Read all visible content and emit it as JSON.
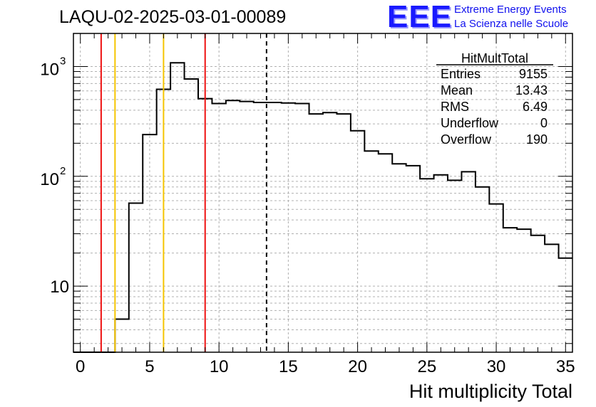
{
  "title": "LAQU-02-2025-03-01-00089",
  "logo": {
    "mark": "EEE",
    "line1": "Extreme Energy Events",
    "line2": "La Scienza nelle Scuole",
    "color": "#1a1aff"
  },
  "chart_data": {
    "type": "histogram",
    "xlabel": "Hit multiplicity Total",
    "ylabel": "",
    "xlim": [
      -0.5,
      35.5
    ],
    "ylim": [
      2.5,
      2000
    ],
    "yscale": "log",
    "grid": true,
    "bin_width": 1,
    "bin_lows": [
      -0.5,
      0.5,
      1.5,
      2.5,
      3.5,
      4.5,
      5.5,
      6.5,
      7.5,
      8.5,
      9.5,
      10.5,
      11.5,
      12.5,
      13.5,
      14.5,
      15.5,
      16.5,
      17.5,
      18.5,
      19.5,
      20.5,
      21.5,
      22.5,
      23.5,
      24.5,
      25.5,
      26.5,
      27.5,
      28.5,
      29.5,
      30.5,
      31.5,
      32.5,
      33.5,
      34.5
    ],
    "counts": [
      0,
      0,
      0,
      5,
      57,
      240,
      620,
      1080,
      770,
      510,
      460,
      490,
      480,
      470,
      470,
      465,
      460,
      370,
      380,
      370,
      260,
      170,
      160,
      130,
      125,
      95,
      103,
      92,
      110,
      80,
      56,
      34,
      33,
      29,
      24,
      18
    ],
    "xticks": [
      0,
      5,
      10,
      15,
      20,
      25,
      30,
      35
    ],
    "xtick_labels": [
      "0",
      "5",
      "10",
      "15",
      "20",
      "25",
      "30",
      "35"
    ],
    "yticks": [
      10,
      100,
      1000
    ],
    "ytick_labels": [
      {
        "base": "10",
        "exp": ""
      },
      {
        "base": "10",
        "exp": "2"
      },
      {
        "base": "10",
        "exp": "3"
      }
    ],
    "vertical_lines": [
      {
        "x": 1.5,
        "color": "#ee1111",
        "style": "solid"
      },
      {
        "x": 2.5,
        "color": "#f5c400",
        "style": "solid"
      },
      {
        "x": 6,
        "color": "#f5c400",
        "style": "solid"
      },
      {
        "x": 9,
        "color": "#ee1111",
        "style": "solid"
      },
      {
        "x": 13.43,
        "color": "#000000",
        "style": "dashed"
      }
    ],
    "stats_box": {
      "title": "HitMultTotal",
      "rows": [
        {
          "label": "Entries",
          "value": "9155"
        },
        {
          "label": "Mean",
          "value": "13.43"
        },
        {
          "label": "RMS",
          "value": "6.49"
        },
        {
          "label": "Underflow",
          "value": "0"
        },
        {
          "label": "Overflow",
          "value": "190"
        }
      ]
    }
  }
}
